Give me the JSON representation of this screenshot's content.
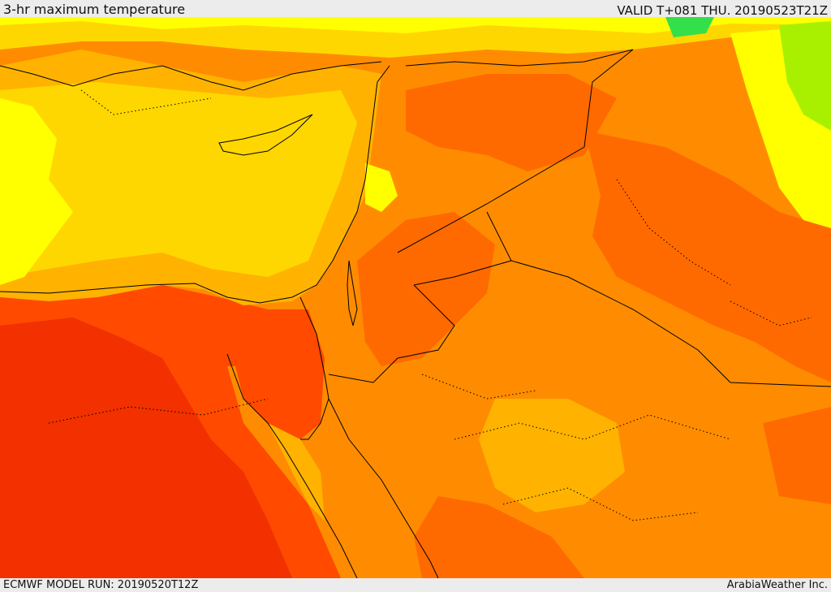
{
  "header": {
    "title": "3-hr maximum temperature",
    "valid": "VALID T+081 THU. 20190523T21Z"
  },
  "footer": {
    "model_run": "ECMWF MODEL RUN: 20190520T12Z",
    "credit": "ArabiaWeather Inc."
  },
  "palette": {
    "green": "#33e04a",
    "lime": "#a8f000",
    "yellow": "#ffff00",
    "gold": "#ffd700",
    "amber": "#ffb300",
    "orange": "#ff8c00",
    "dark_orange": "#ff6a00",
    "red_orange": "#ff4a00",
    "red": "#f23000"
  }
}
